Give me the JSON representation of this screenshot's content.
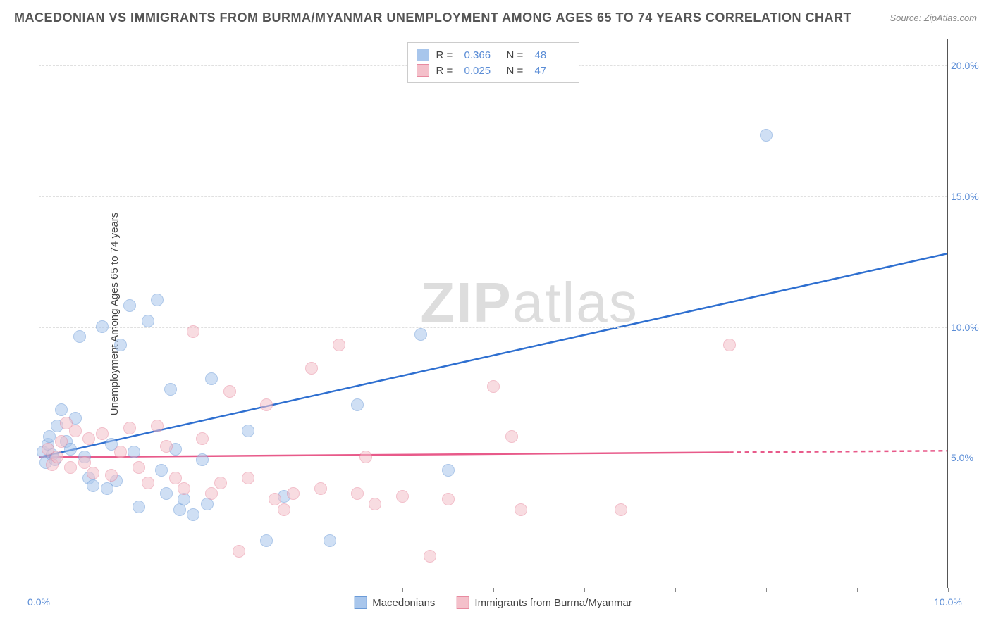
{
  "header": {
    "title": "MACEDONIAN VS IMMIGRANTS FROM BURMA/MYANMAR UNEMPLOYMENT AMONG AGES 65 TO 74 YEARS CORRELATION CHART",
    "source": "Source: ZipAtlas.com"
  },
  "watermark": {
    "part1": "ZIP",
    "part2": "atlas"
  },
  "chart": {
    "type": "scatter",
    "y_axis_title": "Unemployment Among Ages 65 to 74 years",
    "xlim": [
      0,
      10
    ],
    "ylim": [
      0,
      21
    ],
    "x_ticks": [
      0,
      1,
      2,
      3,
      4,
      5,
      6,
      7,
      8,
      9,
      10
    ],
    "x_tick_labels": {
      "0": "0.0%",
      "10": "10.0%"
    },
    "y_ticks": [
      5,
      10,
      15,
      20
    ],
    "y_tick_labels": {
      "5": "5.0%",
      "10": "10.0%",
      "15": "15.0%",
      "20": "20.0%"
    },
    "grid_color": "#e0e0e0",
    "background_color": "#ffffff",
    "marker_radius": 9,
    "marker_opacity": 0.55,
    "series": [
      {
        "name": "Macedonians",
        "color_fill": "#a8c6ec",
        "color_stroke": "#6b9bd8",
        "line_color": "#2e6fd0",
        "R": "0.366",
        "N": "48",
        "trend": {
          "x1": 0,
          "y1": 5.0,
          "x2": 10,
          "y2": 12.8,
          "dash_after_x": null
        },
        "points": [
          [
            0.05,
            5.2
          ],
          [
            0.08,
            4.8
          ],
          [
            0.1,
            5.5
          ],
          [
            0.12,
            5.8
          ],
          [
            0.15,
            5.1
          ],
          [
            0.18,
            4.9
          ],
          [
            0.2,
            6.2
          ],
          [
            0.25,
            6.8
          ],
          [
            0.3,
            5.6
          ],
          [
            0.35,
            5.3
          ],
          [
            0.4,
            6.5
          ],
          [
            0.45,
            9.6
          ],
          [
            0.5,
            5.0
          ],
          [
            0.55,
            4.2
          ],
          [
            0.6,
            3.9
          ],
          [
            0.7,
            10.0
          ],
          [
            0.75,
            3.8
          ],
          [
            0.8,
            5.5
          ],
          [
            0.85,
            4.1
          ],
          [
            0.9,
            9.3
          ],
          [
            1.0,
            10.8
          ],
          [
            1.05,
            5.2
          ],
          [
            1.1,
            3.1
          ],
          [
            1.2,
            10.2
          ],
          [
            1.3,
            11.0
          ],
          [
            1.35,
            4.5
          ],
          [
            1.4,
            3.6
          ],
          [
            1.45,
            7.6
          ],
          [
            1.5,
            5.3
          ],
          [
            1.55,
            3.0
          ],
          [
            1.6,
            3.4
          ],
          [
            1.7,
            2.8
          ],
          [
            1.8,
            4.9
          ],
          [
            1.85,
            3.2
          ],
          [
            1.9,
            8.0
          ],
          [
            2.3,
            6.0
          ],
          [
            2.5,
            1.8
          ],
          [
            2.7,
            3.5
          ],
          [
            3.2,
            1.8
          ],
          [
            3.5,
            7.0
          ],
          [
            4.2,
            9.7
          ],
          [
            4.5,
            4.5
          ],
          [
            8.0,
            17.3
          ]
        ]
      },
      {
        "name": "Immigrants from Burma/Myanmar",
        "color_fill": "#f4c0ca",
        "color_stroke": "#e88ba0",
        "R": "0.025",
        "N": "47",
        "line_color": "#e85a8a",
        "trend": {
          "x1": 0,
          "y1": 5.0,
          "x2": 10,
          "y2": 5.25,
          "dash_after_x": 7.6
        },
        "points": [
          [
            0.1,
            5.3
          ],
          [
            0.15,
            4.7
          ],
          [
            0.2,
            5.0
          ],
          [
            0.25,
            5.6
          ],
          [
            0.3,
            6.3
          ],
          [
            0.35,
            4.6
          ],
          [
            0.4,
            6.0
          ],
          [
            0.5,
            4.8
          ],
          [
            0.55,
            5.7
          ],
          [
            0.6,
            4.4
          ],
          [
            0.7,
            5.9
          ],
          [
            0.8,
            4.3
          ],
          [
            0.9,
            5.2
          ],
          [
            1.0,
            6.1
          ],
          [
            1.1,
            4.6
          ],
          [
            1.2,
            4.0
          ],
          [
            1.3,
            6.2
          ],
          [
            1.4,
            5.4
          ],
          [
            1.5,
            4.2
          ],
          [
            1.6,
            3.8
          ],
          [
            1.7,
            9.8
          ],
          [
            1.8,
            5.7
          ],
          [
            1.9,
            3.6
          ],
          [
            2.0,
            4.0
          ],
          [
            2.1,
            7.5
          ],
          [
            2.2,
            1.4
          ],
          [
            2.3,
            4.2
          ],
          [
            2.5,
            7.0
          ],
          [
            2.6,
            3.4
          ],
          [
            2.7,
            3.0
          ],
          [
            2.8,
            3.6
          ],
          [
            3.0,
            8.4
          ],
          [
            3.1,
            3.8
          ],
          [
            3.3,
            9.3
          ],
          [
            3.5,
            3.6
          ],
          [
            3.6,
            5.0
          ],
          [
            3.7,
            3.2
          ],
          [
            4.0,
            3.5
          ],
          [
            4.3,
            1.2
          ],
          [
            4.5,
            3.4
          ],
          [
            5.0,
            7.7
          ],
          [
            5.2,
            5.8
          ],
          [
            5.3,
            3.0
          ],
          [
            6.4,
            3.0
          ],
          [
            7.6,
            9.3
          ]
        ]
      }
    ]
  },
  "legend_top": {
    "rows": [
      {
        "swatch_fill": "#a8c6ec",
        "swatch_stroke": "#6b9bd8",
        "r_label": "R =",
        "r_val": "0.366",
        "n_label": "N =",
        "n_val": "48"
      },
      {
        "swatch_fill": "#f4c0ca",
        "swatch_stroke": "#e88ba0",
        "r_label": "R =",
        "r_val": "0.025",
        "n_label": "N =",
        "n_val": "47"
      }
    ]
  },
  "legend_bottom": {
    "items": [
      {
        "swatch_fill": "#a8c6ec",
        "swatch_stroke": "#6b9bd8",
        "label": "Macedonians"
      },
      {
        "swatch_fill": "#f4c0ca",
        "swatch_stroke": "#e88ba0",
        "label": "Immigrants from Burma/Myanmar"
      }
    ]
  }
}
